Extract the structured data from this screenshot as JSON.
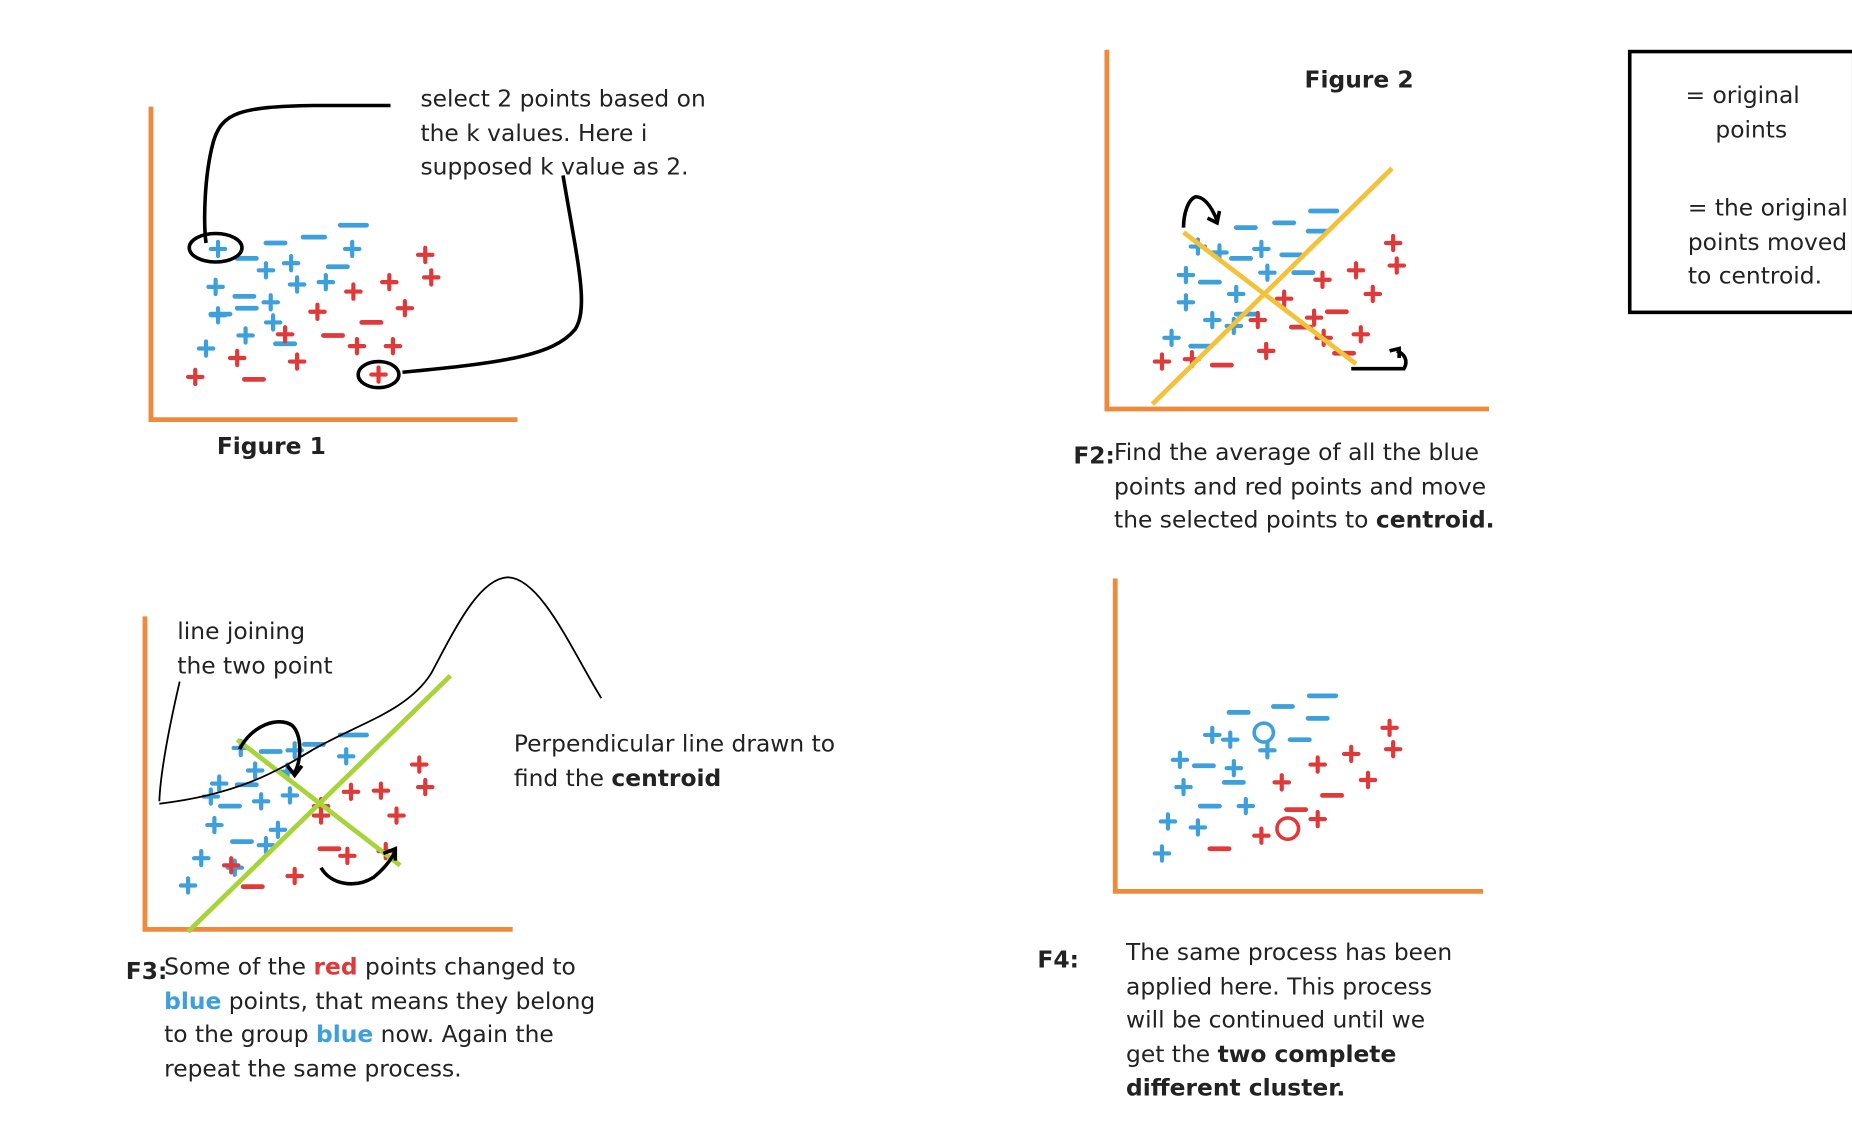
{
  "figure1": {
    "annotation_lines": [
      "select 2 points based on",
      "the k values. Here i",
      "supposed k value as 2."
    ],
    "caption": "Figure 1"
  },
  "figure2": {
    "title": "Figure 2",
    "caption_label": "F2:",
    "caption_lines": [
      "Find the average of all the blue",
      "points and red points and move"
    ],
    "caption_line3_prefix": "the selected points to ",
    "caption_line3_bold": "centroid."
  },
  "legend": {
    "original_points": [
      "= original",
      "points"
    ],
    "moved_points": [
      "= the original",
      "points moved",
      "to centroid."
    ]
  },
  "figure3": {
    "line_annotation": [
      "line joining",
      "the two point"
    ],
    "perp_annotation_line1": "Perpendicular line drawn to",
    "perp_annotation_line2_prefix": "find the ",
    "perp_annotation_line2_bold": "centroid",
    "caption_label": "F3:",
    "caption": {
      "l1_a": "Some of the ",
      "l1_red": "red",
      "l1_b": " points changed to",
      "l2_blue": "blue",
      "l2_b": " points, that means they belong",
      "l3_a": "to the group ",
      "l3_blue": "blue",
      "l3_b": " now. Again the",
      "l4": "repeat the same process."
    }
  },
  "figure4": {
    "caption_label": "F4:",
    "caption_lines": [
      "The same process has been",
      "applied here. This process",
      "will be continued until we"
    ],
    "caption_line4_prefix": "get the ",
    "caption_line4_bold": "two complete",
    "caption_line5_bold": "different cluster."
  },
  "colors": {
    "axis": "#ef8a3c",
    "blue": "#3d9fdc",
    "red": "#e0393a",
    "yellow": "#f3c13a",
    "green": "#a8d43a"
  },
  "icons": [
    "plus-point-icon",
    "minus-point-icon",
    "circle-marker-icon",
    "curved-arrow-icon",
    "four-point-star-icon"
  ]
}
